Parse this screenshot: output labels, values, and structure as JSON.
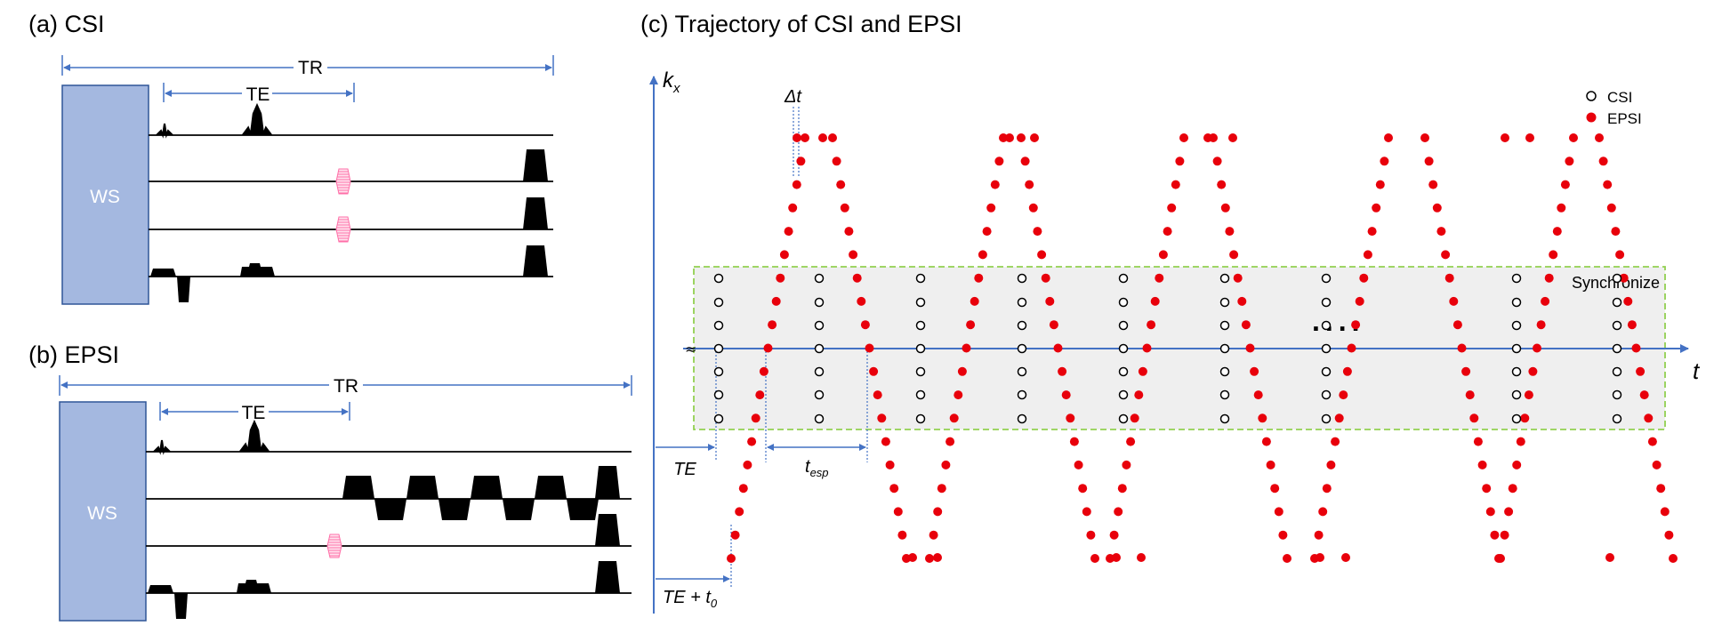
{
  "panel_a": {
    "label": "(a) CSI",
    "tr": "TR",
    "te": "TE",
    "ws": "WS"
  },
  "panel_b": {
    "label": "(b) EPSI",
    "tr": "TR",
    "te": "TE",
    "ws": "WS"
  },
  "panel_c": {
    "label": "(c) Trajectory of CSI and EPSI",
    "axis_y": "k",
    "axis_y_sub": "x",
    "axis_x": "t",
    "delta_t": "Δt",
    "te": "TE",
    "t_esp": "t",
    "t_esp_sub": "esp",
    "te_t0": "TE + t",
    "te_t0_sub": "0",
    "synchronize": "Synchronize",
    "ellipsis": "....",
    "legend": [
      {
        "name": "CSI",
        "marker": "open-circle"
      },
      {
        "name": "EPSI",
        "marker": "filled-red-circle"
      }
    ],
    "colors": {
      "epsi": "#e8000b",
      "axis": "#4472c4",
      "sync_border": "#92d050",
      "sync_fill": "#efefef",
      "ws_block": "#a4b8e0",
      "spoiler": "#ff8fb8"
    }
  }
}
